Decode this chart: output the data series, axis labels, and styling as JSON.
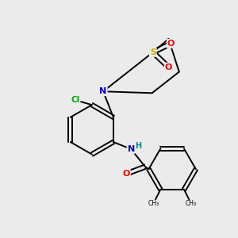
{
  "background_color": "#ebebeb",
  "bond_color": "#000000",
  "atom_colors": {
    "N": "#0000cc",
    "O": "#ff0000",
    "S": "#ccaa00",
    "Cl": "#00aa00",
    "C": "#000000",
    "H": "#008888"
  },
  "figsize": [
    3.0,
    3.0
  ],
  "dpi": 100
}
